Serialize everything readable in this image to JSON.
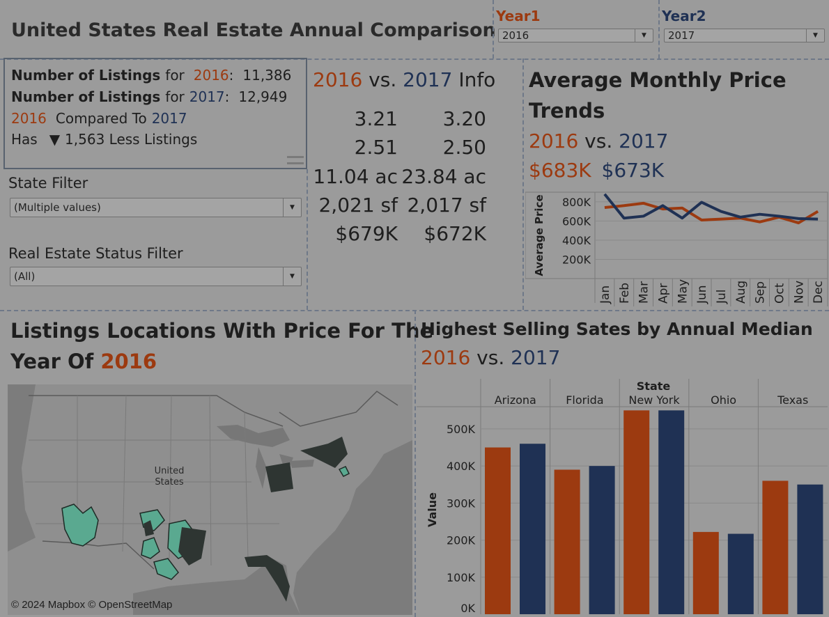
{
  "header": {
    "title": "United States Real Estate Annual Comparison",
    "year1_label": "Year1",
    "year1_value": "2016",
    "year2_label": "Year2",
    "year2_value": "2017"
  },
  "listings": {
    "label": "Number of Listings",
    "for": "for",
    "year1": "2016",
    "year2": "2017",
    "count1": "11,386",
    "count2": "12,949",
    "compared_to": "Compared To",
    "has": "Has",
    "diff_icon": "triangle-down-icon",
    "diff_text": "1,563 Less Listings"
  },
  "filters": {
    "state_label": "State Filter",
    "state_value": "(Multiple values)",
    "status_label": "Real Estate Status Filter",
    "status_value": "(All)"
  },
  "info": {
    "year1": "2016",
    "vs": "vs.",
    "year2": "2017",
    "suffix": "Info",
    "rows": [
      [
        "3.21",
        "3.20"
      ],
      [
        "2.51",
        "2.50"
      ],
      [
        "11.04 ac",
        "23.84 ac"
      ],
      [
        "2,021 sf",
        "2,017 sf"
      ],
      [
        "$679K",
        "$672K"
      ]
    ]
  },
  "trends": {
    "title_line1": "Average Monthly Price",
    "title_line2": "Trends",
    "year1": "2016",
    "vs": "vs.",
    "year2": "2017",
    "avg1": "$683K",
    "avg2": "$673K"
  },
  "map": {
    "title_line1": "Listings Locations With Price For The",
    "title_line2_prefix": "Year Of",
    "year": "2016",
    "country_label_1": "United",
    "country_label_2": "States",
    "attribution": "© 2024 Mapbox © OpenStreetMap"
  },
  "bars": {
    "title": "Highest Selling Sates by Annual Median",
    "year1": "2016",
    "vs": "vs.",
    "year2": "2017"
  },
  "colors": {
    "year1": "#9c3a10",
    "year2": "#1f3154",
    "background": "#9b9b9b"
  },
  "chart_data": [
    {
      "type": "line",
      "ylabel": "Average Price",
      "categories": [
        "Jan",
        "Feb",
        "Mar",
        "Apr",
        "May",
        "Jun",
        "Jul",
        "Aug",
        "Sep",
        "Oct",
        "Nov",
        "Dec"
      ],
      "yticks": [
        "200K",
        "400K",
        "600K",
        "800K"
      ],
      "ylim": [
        0,
        900000
      ],
      "series": [
        {
          "name": "2016",
          "color": "#9c3a10",
          "values": [
            740000,
            760000,
            785000,
            725000,
            735000,
            610000,
            620000,
            630000,
            590000,
            640000,
            580000,
            700000
          ]
        },
        {
          "name": "2017",
          "color": "#1f3154",
          "values": [
            880000,
            630000,
            650000,
            760000,
            630000,
            795000,
            700000,
            640000,
            670000,
            650000,
            625000,
            620000
          ]
        }
      ]
    },
    {
      "type": "bar",
      "header": "State",
      "ylabel": "Value",
      "categories": [
        "Arizona",
        "Florida",
        "New York",
        "Ohio",
        "Texas"
      ],
      "yticks": [
        "0K",
        "100K",
        "200K",
        "300K",
        "400K",
        "500K"
      ],
      "ylim": [
        0,
        560000
      ],
      "series": [
        {
          "name": "2016",
          "color": "#9c3a10",
          "values": [
            450000,
            390000,
            550000,
            222000,
            360000
          ]
        },
        {
          "name": "2017",
          "color": "#1f3154",
          "values": [
            460000,
            400000,
            550000,
            217000,
            350000
          ]
        }
      ]
    }
  ]
}
